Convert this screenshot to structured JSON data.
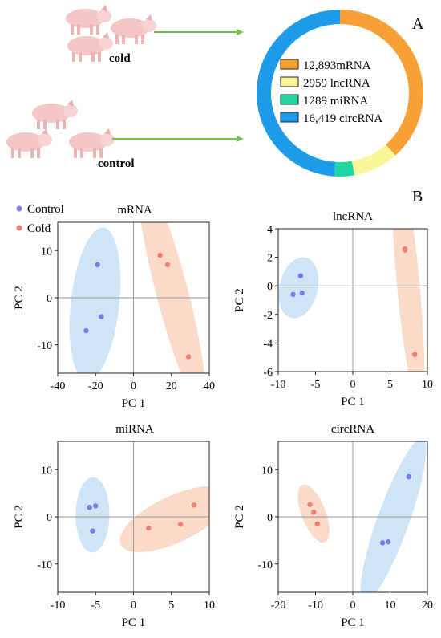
{
  "panel_a": {
    "label": "A",
    "group_labels": [
      "cold",
      "control"
    ],
    "donut_legend": [
      {
        "count": "12,893",
        "name": "mRNA",
        "color": "#f7a035"
      },
      {
        "count": "2959",
        "name": "lncRNA",
        "color": "#fbf59a"
      },
      {
        "count": "1289",
        "name": "miRNA",
        "color": "#1ed6a0"
      },
      {
        "count": "16,419",
        "name": "circRNA",
        "color": "#1e9be8"
      }
    ],
    "chart_data": {
      "type": "pie",
      "categories": [
        "mRNA",
        "lncRNA",
        "miRNA",
        "circRNA"
      ],
      "values": [
        12893,
        2959,
        1289,
        16419
      ]
    }
  },
  "panel_b": {
    "label": "B",
    "legend": [
      {
        "name": "Control",
        "color": "#7a7ae8"
      },
      {
        "name": "Cold",
        "color": "#f08070"
      }
    ]
  },
  "chart_data": [
    {
      "type": "scatter",
      "title": "mRNA",
      "xlabel": "PC 1",
      "ylabel": "PC 2",
      "xlim": [
        -40,
        40
      ],
      "ylim": [
        -16,
        16
      ],
      "xticks": [
        -40,
        -20,
        0,
        20,
        40
      ],
      "yticks": [
        -10,
        0,
        10
      ],
      "series": [
        {
          "name": "Control",
          "color": "#7a7ae8",
          "points": [
            [
              -19,
              7
            ],
            [
              -17,
              -4
            ],
            [
              -25,
              -7
            ]
          ]
        },
        {
          "name": "Cold",
          "color": "#f08070",
          "points": [
            [
              14,
              9
            ],
            [
              18,
              7
            ],
            [
              29,
              -12.5
            ]
          ]
        }
      ]
    },
    {
      "type": "scatter",
      "title": "lncRNA",
      "xlabel": "PC 1",
      "ylabel": "PC 2",
      "xlim": [
        -10,
        10
      ],
      "ylim": [
        -6,
        4
      ],
      "xticks": [
        -10,
        -5,
        0,
        5,
        10
      ],
      "yticks": [
        -6,
        -4,
        -2,
        0,
        2,
        4
      ],
      "series": [
        {
          "name": "Control",
          "color": "#7a7ae8",
          "points": [
            [
              -7,
              0.7
            ],
            [
              -6.8,
              -0.5
            ],
            [
              -8,
              -0.6
            ]
          ]
        },
        {
          "name": "Cold",
          "color": "#f08070",
          "points": [
            [
              7,
              2.6
            ],
            [
              7,
              2.5
            ],
            [
              8.3,
              -4.8
            ]
          ]
        }
      ]
    },
    {
      "type": "scatter",
      "title": "miRNA",
      "xlabel": "PC 1",
      "ylabel": "PC 2",
      "xlim": [
        -10,
        10
      ],
      "ylim": [
        -16,
        16
      ],
      "xticks": [
        -10,
        -5,
        0,
        5,
        10
      ],
      "yticks": [
        -10,
        0,
        10
      ],
      "series": [
        {
          "name": "Control",
          "color": "#7a7ae8",
          "points": [
            [
              -5.8,
              2
            ],
            [
              -5.0,
              2.3
            ],
            [
              -5.4,
              -3
            ]
          ]
        },
        {
          "name": "Cold",
          "color": "#f08070",
          "points": [
            [
              2,
              -2.4
            ],
            [
              6.2,
              -1.6
            ],
            [
              8,
              2.5
            ]
          ]
        }
      ]
    },
    {
      "type": "scatter",
      "title": "circRNA",
      "xlabel": "PC 1",
      "ylabel": "PC 2",
      "xlim": [
        -20,
        20
      ],
      "ylim": [
        -16,
        16
      ],
      "xticks": [
        -20,
        -10,
        0,
        10,
        20
      ],
      "yticks": [
        -10,
        0,
        10
      ],
      "series": [
        {
          "name": "Control",
          "color": "#7a7ae8",
          "points": [
            [
              15,
              8.5
            ],
            [
              8,
              -5.5
            ],
            [
              9.5,
              -5.3
            ]
          ]
        },
        {
          "name": "Cold",
          "color": "#f08070",
          "points": [
            [
              -11.5,
              2.6
            ],
            [
              -10.5,
              1
            ],
            [
              -9.5,
              -1.5
            ]
          ]
        }
      ]
    }
  ]
}
